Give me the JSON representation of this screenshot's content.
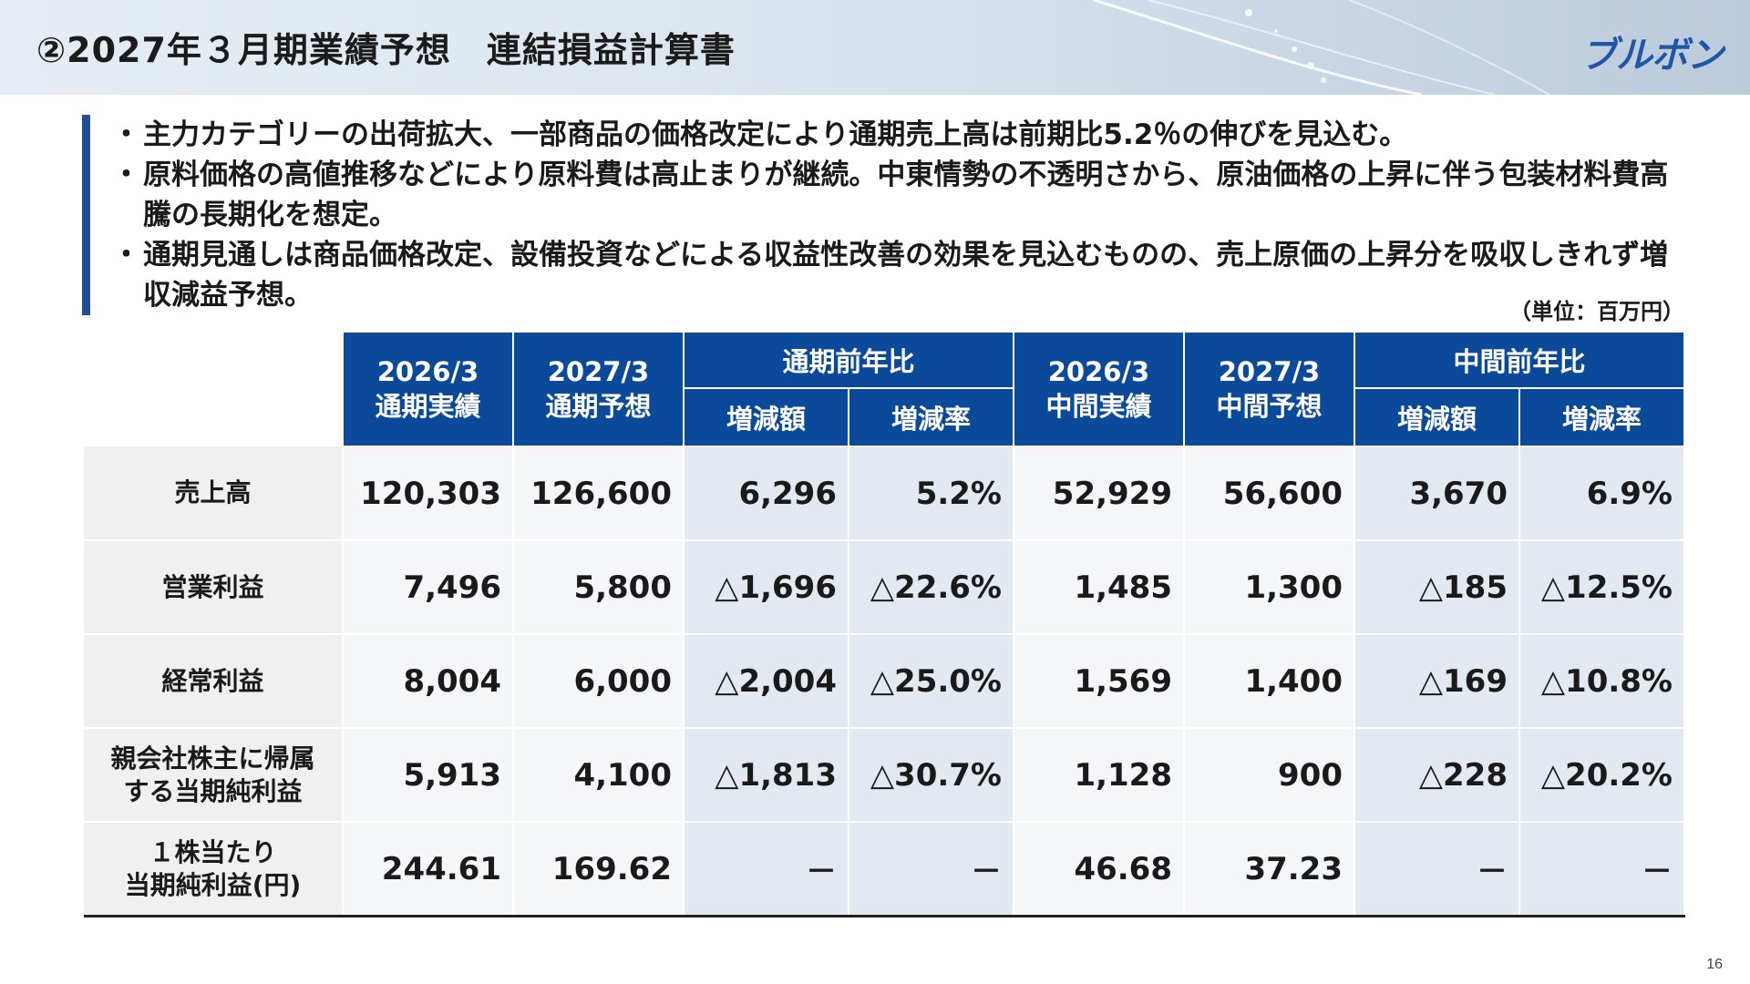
{
  "header": {
    "title": "②2027年３月期業績予想　連結損益計算書",
    "logo_text": "ブルボン"
  },
  "bullets": [
    {
      "marker": "・",
      "text": "主力カテゴリーの出荷拡大、一部商品の価格改定により通期売上高は前期比5.2％の伸びを見込む。"
    },
    {
      "marker": "・",
      "text": "原料価格の高値推移などにより原料費は高止まりが継続。中東情勢の不透明さから、原油価格の上昇に伴う包装材料費高騰の長期化を想定。"
    },
    {
      "marker": "・",
      "text": "通期見通しは商品価格改定、設備投資などによる収益性改善の効果を見込むものの、売上原価の上昇分を吸収しきれず増収減益予想。"
    }
  ],
  "unit_label": "（単位：百万円）",
  "table": {
    "headers": {
      "fy_actual": [
        "2026/3",
        "通期実績"
      ],
      "fy_forecast": [
        "2027/3",
        "通期予想"
      ],
      "fy_yoy": "通期前年比",
      "h1_actual": [
        "2026/3",
        "中間実績"
      ],
      "h1_forecast": [
        "2027/3",
        "中間予想"
      ],
      "h1_yoy": "中間前年比",
      "change_amount": "増減額",
      "change_rate": "増減率"
    },
    "rows": [
      {
        "label": [
          "売上高"
        ],
        "values": [
          "120,303",
          "126,600",
          "6,296",
          "5.2%",
          "52,929",
          "56,600",
          "3,670",
          "6.9%"
        ]
      },
      {
        "label": [
          "営業利益"
        ],
        "values": [
          "7,496",
          "5,800",
          "△1,696",
          "△22.6%",
          "1,485",
          "1,300",
          "△185",
          "△12.5%"
        ]
      },
      {
        "label": [
          "経常利益"
        ],
        "values": [
          "8,004",
          "6,000",
          "△2,004",
          "△25.0%",
          "1,569",
          "1,400",
          "△169",
          "△10.8%"
        ]
      },
      {
        "label": [
          "親会社株主に帰属",
          "する当期純利益"
        ],
        "values": [
          "5,913",
          "4,100",
          "△1,813",
          "△30.7%",
          "1,128",
          "900",
          "△228",
          "△20.2%"
        ]
      },
      {
        "label": [
          "１株当たり",
          "当期純利益(円)"
        ],
        "values": [
          "244.61",
          "169.62",
          "－",
          "－",
          "46.68",
          "37.23",
          "－",
          "－"
        ]
      }
    ]
  },
  "page_number": "16",
  "colors": {
    "header_fill": "#0b4a9b",
    "accent_bar": "#1f4e96",
    "logo": "#1f56a8",
    "yoy_tint": "#e3e9f1"
  }
}
